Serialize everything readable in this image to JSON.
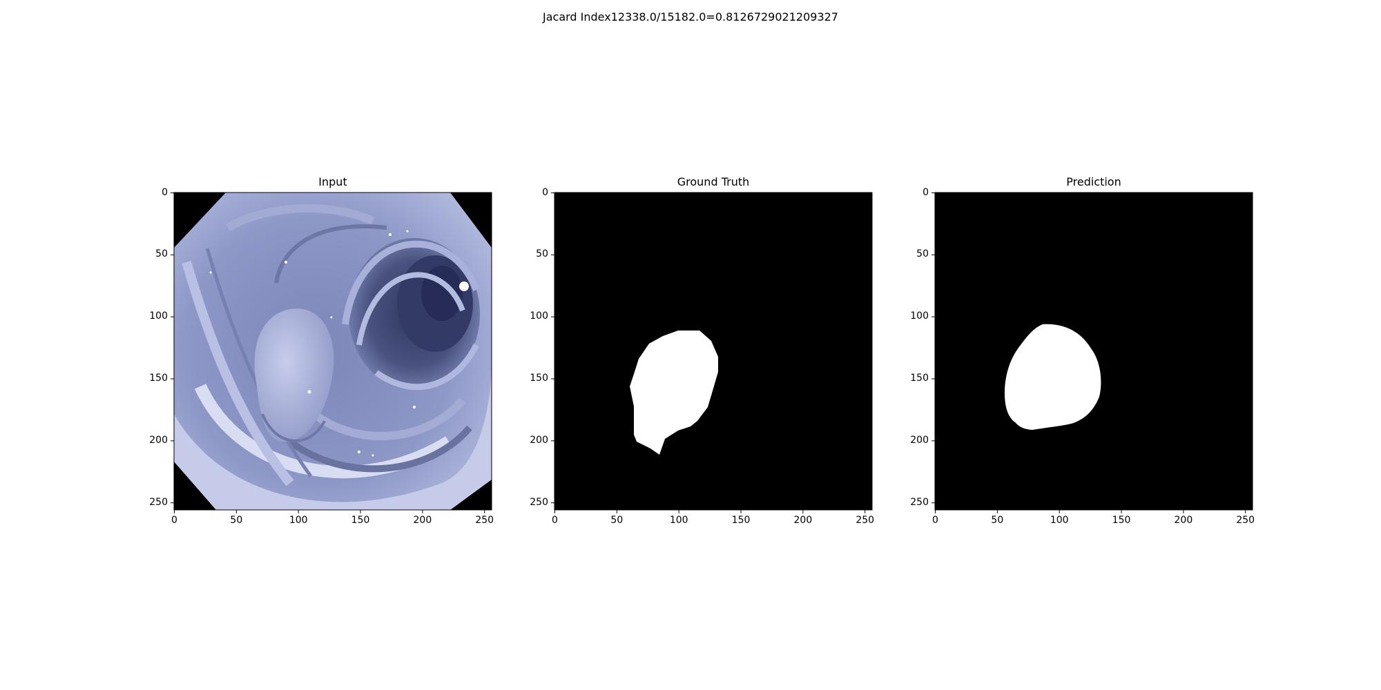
{
  "figure": {
    "suptitle": "Jacard Index12338.0/15182.0=0.8126729021209327"
  },
  "panels": [
    {
      "title": "Input",
      "content": "colonoscopy-frame",
      "xticks": [
        "0",
        "50",
        "100",
        "150",
        "200",
        "250"
      ],
      "yticks": [
        "0",
        "50",
        "100",
        "150",
        "200",
        "250"
      ]
    },
    {
      "title": "Ground Truth",
      "content": "binary-mask",
      "xticks": [
        "0",
        "50",
        "100",
        "150",
        "200",
        "250"
      ],
      "yticks": [
        "0",
        "50",
        "100",
        "150",
        "200",
        "250"
      ]
    },
    {
      "title": "Prediction",
      "content": "binary-mask",
      "xticks": [
        "0",
        "50",
        "100",
        "150",
        "200",
        "250"
      ],
      "yticks": [
        "0",
        "50",
        "100",
        "150",
        "200",
        "250"
      ]
    }
  ],
  "colors": {
    "mask_background": "#000000",
    "mask_foreground": "#ffffff",
    "tissue_base": "#8c95c4",
    "tissue_light": "#c9cfe8",
    "tissue_dark": "#3e4670"
  }
}
